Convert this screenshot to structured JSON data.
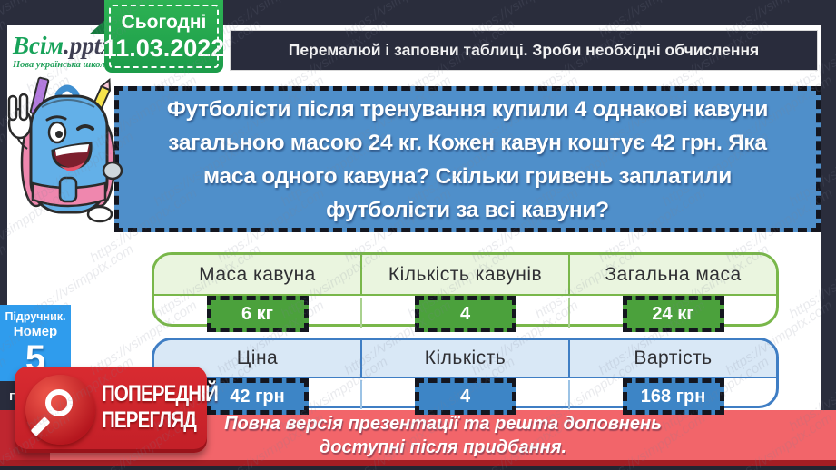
{
  "brand": {
    "name_accent": "Всім",
    "name_rest": ".pptx",
    "tagline": "Нова українська школа"
  },
  "date_box": {
    "label": "Сьогодні",
    "date": "11.03.2022"
  },
  "task_bar": {
    "text": "Перемалюй і заповни таблиці. Зроби необхідні обчислення"
  },
  "problem": {
    "lines": [
      "Футболісти після тренування купили 4 однакові кавуни",
      "загальною масою 24 кг. Кожен кавун коштує 42 грн. Яка",
      "маса одного кавуна? Скільки гривень заплатили",
      "футболісти за всі кавуни?"
    ]
  },
  "mass_table": {
    "headers": [
      "Маса  кавуна",
      "Кількість  кавунів",
      "Загальна  маса"
    ],
    "values": [
      "6 кг",
      "4",
      "24 кг"
    ]
  },
  "price_table": {
    "headers": [
      "Ціна",
      "Кількість",
      "Вартість"
    ],
    "values": [
      "42 грн",
      "4",
      "168 грн"
    ]
  },
  "sidebar": {
    "book_label": "Підручник.",
    "number_label": "Номер",
    "number_value": "5",
    "partial_label": "п"
  },
  "preview_badge": {
    "line1": "ПОПЕРЕДНІЙ",
    "line2": "ПЕРЕГЛЯД",
    "icon": "magnifier-icon"
  },
  "footer_banner": {
    "line1": "Повна версія презентації та решта доповнень",
    "line2": "доступні після придбання."
  },
  "watermark": {
    "text": "https://vsimpptx.com"
  },
  "colors": {
    "canvas_navy": "#2a2d3c",
    "date_green": "#2db253",
    "problem_blue": "#4f8fca",
    "table_green_border": "#79b74a",
    "table_green_cell": "#4ba13c",
    "table_blue_border": "#3f7ec4",
    "table_blue_cell": "#3d85c6",
    "banner_red": "#f2656a",
    "badge_red": "#d92b31",
    "sidebar_blue": "#2f9ced"
  }
}
